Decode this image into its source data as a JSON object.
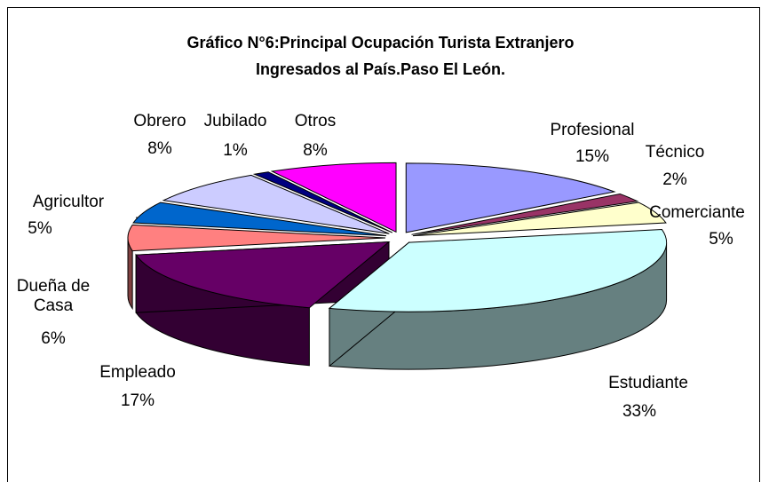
{
  "chart_data": {
    "type": "pie3d",
    "title": [
      "Gráfico N°6:Principal Ocupación Turista Extranjero",
      "Ingresados al País.Paso El León."
    ],
    "categories": [
      "Profesional",
      "Técnico",
      "Comerciante",
      "Estudiante",
      "Empleado",
      "Dueña de Casa",
      "Agricultor",
      "Obrero",
      "Jubilado",
      "Otros"
    ],
    "values": [
      15,
      2,
      5,
      33,
      17,
      6,
      5,
      8,
      1,
      8
    ],
    "value_labels": [
      "15%",
      "2%",
      "5%",
      "33%",
      "17%",
      "6%",
      "5%",
      "8%",
      "1%",
      "8%"
    ],
    "colors": [
      "#9999ff",
      "#993366",
      "#ffffcc",
      "#ccffff",
      "#660066",
      "#ff8080",
      "#0066cc",
      "#ccccff",
      "#000080",
      "#ff00ff"
    ]
  }
}
